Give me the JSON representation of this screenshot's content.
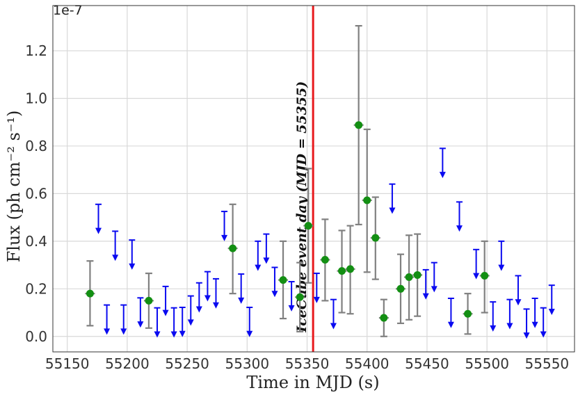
{
  "chart_data": {
    "type": "scatter",
    "title": "",
    "xlabel": "Time in MJD (s)",
    "ylabel": "Flux (ph cm⁻² s⁻¹)",
    "y_multiplier": "1e-7",
    "xlim": [
      55138,
      55573
    ],
    "ylim": [
      -0.065,
      1.39
    ],
    "x_ticks": [
      55150,
      55200,
      55250,
      55300,
      55350,
      55400,
      55450,
      55500,
      55550
    ],
    "x_tick_labels": [
      "55150",
      "55200",
      "55250",
      "55300",
      "55350",
      "55400",
      "55450",
      "55500",
      "55550"
    ],
    "y_ticks": [
      0.0,
      0.2,
      0.4,
      0.6,
      0.8,
      1.0,
      1.2
    ],
    "y_tick_labels": [
      "0.0",
      "0.2",
      "0.4",
      "0.6",
      "0.8",
      "1.0",
      "1.2"
    ],
    "grid": true,
    "legend": "none",
    "event_line": {
      "x": 55355,
      "label": "IceCube event day (MJD = 55355)",
      "color": "#e8191c"
    },
    "colors": {
      "detection": "#138f13",
      "errorbar": "#808080",
      "upper_limit": "#0a0af0"
    },
    "detections": [
      {
        "x": 55169,
        "y": 0.18,
        "ylo": 0.045,
        "yhi": 0.317
      },
      {
        "x": 55218,
        "y": 0.15,
        "ylo": 0.035,
        "yhi": 0.265
      },
      {
        "x": 55288,
        "y": 0.37,
        "ylo": 0.18,
        "yhi": 0.555
      },
      {
        "x": 55330,
        "y": 0.237,
        "ylo": 0.075,
        "yhi": 0.4
      },
      {
        "x": 55344,
        "y": 0.165,
        "ylo": 0.02,
        "yhi": 0.31
      },
      {
        "x": 55351,
        "y": 0.465,
        "ylo": 0.225,
        "yhi": 0.705
      },
      {
        "x": 55365,
        "y": 0.322,
        "ylo": 0.15,
        "yhi": 0.492
      },
      {
        "x": 55379,
        "y": 0.275,
        "ylo": 0.1,
        "yhi": 0.445
      },
      {
        "x": 55386,
        "y": 0.283,
        "ylo": 0.095,
        "yhi": 0.465
      },
      {
        "x": 55393,
        "y": 0.888,
        "ylo": 0.47,
        "yhi": 1.305
      },
      {
        "x": 55400,
        "y": 0.572,
        "ylo": 0.27,
        "yhi": 0.87
      },
      {
        "x": 55407,
        "y": 0.414,
        "ylo": 0.24,
        "yhi": 0.585
      },
      {
        "x": 55414,
        "y": 0.078,
        "ylo": 0.0,
        "yhi": 0.155
      },
      {
        "x": 55428,
        "y": 0.2,
        "ylo": 0.055,
        "yhi": 0.345
      },
      {
        "x": 55435,
        "y": 0.249,
        "ylo": 0.07,
        "yhi": 0.425
      },
      {
        "x": 55442,
        "y": 0.258,
        "ylo": 0.085,
        "yhi": 0.43
      },
      {
        "x": 55484,
        "y": 0.095,
        "ylo": 0.01,
        "yhi": 0.18
      },
      {
        "x": 55498,
        "y": 0.255,
        "ylo": 0.1,
        "yhi": 0.4
      }
    ],
    "upper_limits": [
      {
        "x": 55176,
        "y": 0.555
      },
      {
        "x": 55183,
        "y": 0.132
      },
      {
        "x": 55190,
        "y": 0.442
      },
      {
        "x": 55197,
        "y": 0.132
      },
      {
        "x": 55204,
        "y": 0.405
      },
      {
        "x": 55211,
        "y": 0.162
      },
      {
        "x": 55225,
        "y": 0.12
      },
      {
        "x": 55232,
        "y": 0.21
      },
      {
        "x": 55239,
        "y": 0.12
      },
      {
        "x": 55246,
        "y": 0.122
      },
      {
        "x": 55253,
        "y": 0.17
      },
      {
        "x": 55260,
        "y": 0.225
      },
      {
        "x": 55267,
        "y": 0.272
      },
      {
        "x": 55274,
        "y": 0.242
      },
      {
        "x": 55281,
        "y": 0.525
      },
      {
        "x": 55295,
        "y": 0.262
      },
      {
        "x": 55302,
        "y": 0.122
      },
      {
        "x": 55309,
        "y": 0.4
      },
      {
        "x": 55316,
        "y": 0.43
      },
      {
        "x": 55323,
        "y": 0.29
      },
      {
        "x": 55337,
        "y": 0.23
      },
      {
        "x": 55358,
        "y": 0.265
      },
      {
        "x": 55372,
        "y": 0.155
      },
      {
        "x": 55421,
        "y": 0.64
      },
      {
        "x": 55449,
        "y": 0.28
      },
      {
        "x": 55456,
        "y": 0.31
      },
      {
        "x": 55463,
        "y": 0.79
      },
      {
        "x": 55470,
        "y": 0.16
      },
      {
        "x": 55477,
        "y": 0.565
      },
      {
        "x": 55491,
        "y": 0.365
      },
      {
        "x": 55505,
        "y": 0.145
      },
      {
        "x": 55512,
        "y": 0.4
      },
      {
        "x": 55519,
        "y": 0.155
      },
      {
        "x": 55526,
        "y": 0.255
      },
      {
        "x": 55533,
        "y": 0.115
      },
      {
        "x": 55540,
        "y": 0.16
      },
      {
        "x": 55547,
        "y": 0.12
      },
      {
        "x": 55554,
        "y": 0.215
      }
    ]
  }
}
